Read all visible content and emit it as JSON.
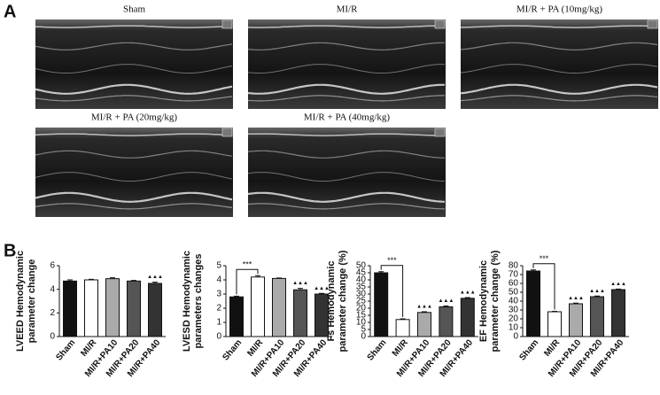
{
  "figure": {
    "panel_labels": [
      "A",
      "B"
    ],
    "images": [
      "Sham",
      "MI/R",
      "MI/R + PA (10mg/kg)",
      "MI/R + PA (20mg/kg)",
      "MI/R + PA (40mg/kg)"
    ]
  },
  "chart_data": [
    {
      "type": "bar",
      "ylabel": [
        "LVEED Hemodynamic",
        "parameter change"
      ],
      "categories": [
        "Sham",
        "MI/R",
        "MI/R+PA10",
        "MI/R+PA20",
        "MI/R+PA40"
      ],
      "values": [
        4.7,
        4.8,
        4.9,
        4.7,
        4.5
      ],
      "errors": [
        0.1,
        0.05,
        0.08,
        0.05,
        0.1
      ],
      "colors": [
        "#111111",
        "#ffffff",
        "#aaaaaa",
        "#555555",
        "#333333"
      ],
      "bar_annotations": [
        null,
        null,
        null,
        null,
        "▲▲▲"
      ],
      "ylim": [
        0,
        6
      ],
      "yticks": [
        0,
        2,
        4,
        6
      ]
    },
    {
      "type": "bar",
      "ylabel": [
        "LVESD Hemodynamic",
        "parameters changes"
      ],
      "categories": [
        "Sham",
        "MI/R",
        "MI/R+PA10",
        "MI/R+PA20",
        "MI/R+PA40"
      ],
      "values": [
        2.8,
        4.2,
        4.1,
        3.3,
        3.0
      ],
      "errors": [
        0.05,
        0.1,
        0.03,
        0.1,
        0.05
      ],
      "colors": [
        "#111111",
        "#ffffff",
        "#aaaaaa",
        "#555555",
        "#333333"
      ],
      "bar_annotations": [
        null,
        null,
        null,
        "▲▲▲",
        "▲▲▲"
      ],
      "bracket": {
        "text": "***",
        "from": "Sham",
        "to": "MI/R"
      },
      "ylim": [
        0,
        5
      ],
      "yticks": [
        0,
        1,
        2,
        3,
        4,
        5
      ]
    },
    {
      "type": "bar",
      "ylabel": [
        "Fs Hemodynamic",
        "parameter change (%)"
      ],
      "categories": [
        "Sham",
        "MI/R",
        "MI/R+PA10",
        "MI/R+PA20",
        "MI/R+PA40"
      ],
      "values": [
        45,
        12,
        17,
        21,
        27
      ],
      "errors": [
        0.8,
        0.5,
        0.5,
        0.6,
        0.5
      ],
      "colors": [
        "#111111",
        "#ffffff",
        "#aaaaaa",
        "#555555",
        "#333333"
      ],
      "bar_annotations": [
        null,
        null,
        "▲▲▲",
        "▲▲▲",
        "▲▲▲"
      ],
      "bracket": {
        "text": "***",
        "from": "Sham",
        "to": "MI/R"
      },
      "ylim": [
        0,
        50
      ],
      "yticks": [
        0,
        5,
        10,
        15,
        20,
        25,
        30,
        35,
        40,
        45,
        50
      ]
    },
    {
      "type": "bar",
      "ylabel": [
        "EF Hemodynamic",
        "parameter change (%)"
      ],
      "categories": [
        "Sham",
        "MI/R",
        "MI/R+PA10",
        "MI/R+PA20",
        "MI/R+PA40"
      ],
      "values": [
        74,
        28,
        37,
        45,
        53
      ],
      "errors": [
        1.2,
        0.5,
        0.8,
        0.8,
        0.6
      ],
      "colors": [
        "#111111",
        "#ffffff",
        "#aaaaaa",
        "#555555",
        "#333333"
      ],
      "bar_annotations": [
        null,
        null,
        "▲▲▲",
        "▲▲▲",
        "▲▲▲"
      ],
      "bracket": {
        "text": "***",
        "from": "Sham",
        "to": "MI/R"
      },
      "ylim": [
        0,
        80
      ],
      "yticks": [
        0,
        10,
        20,
        30,
        40,
        50,
        60,
        70,
        80
      ]
    }
  ]
}
